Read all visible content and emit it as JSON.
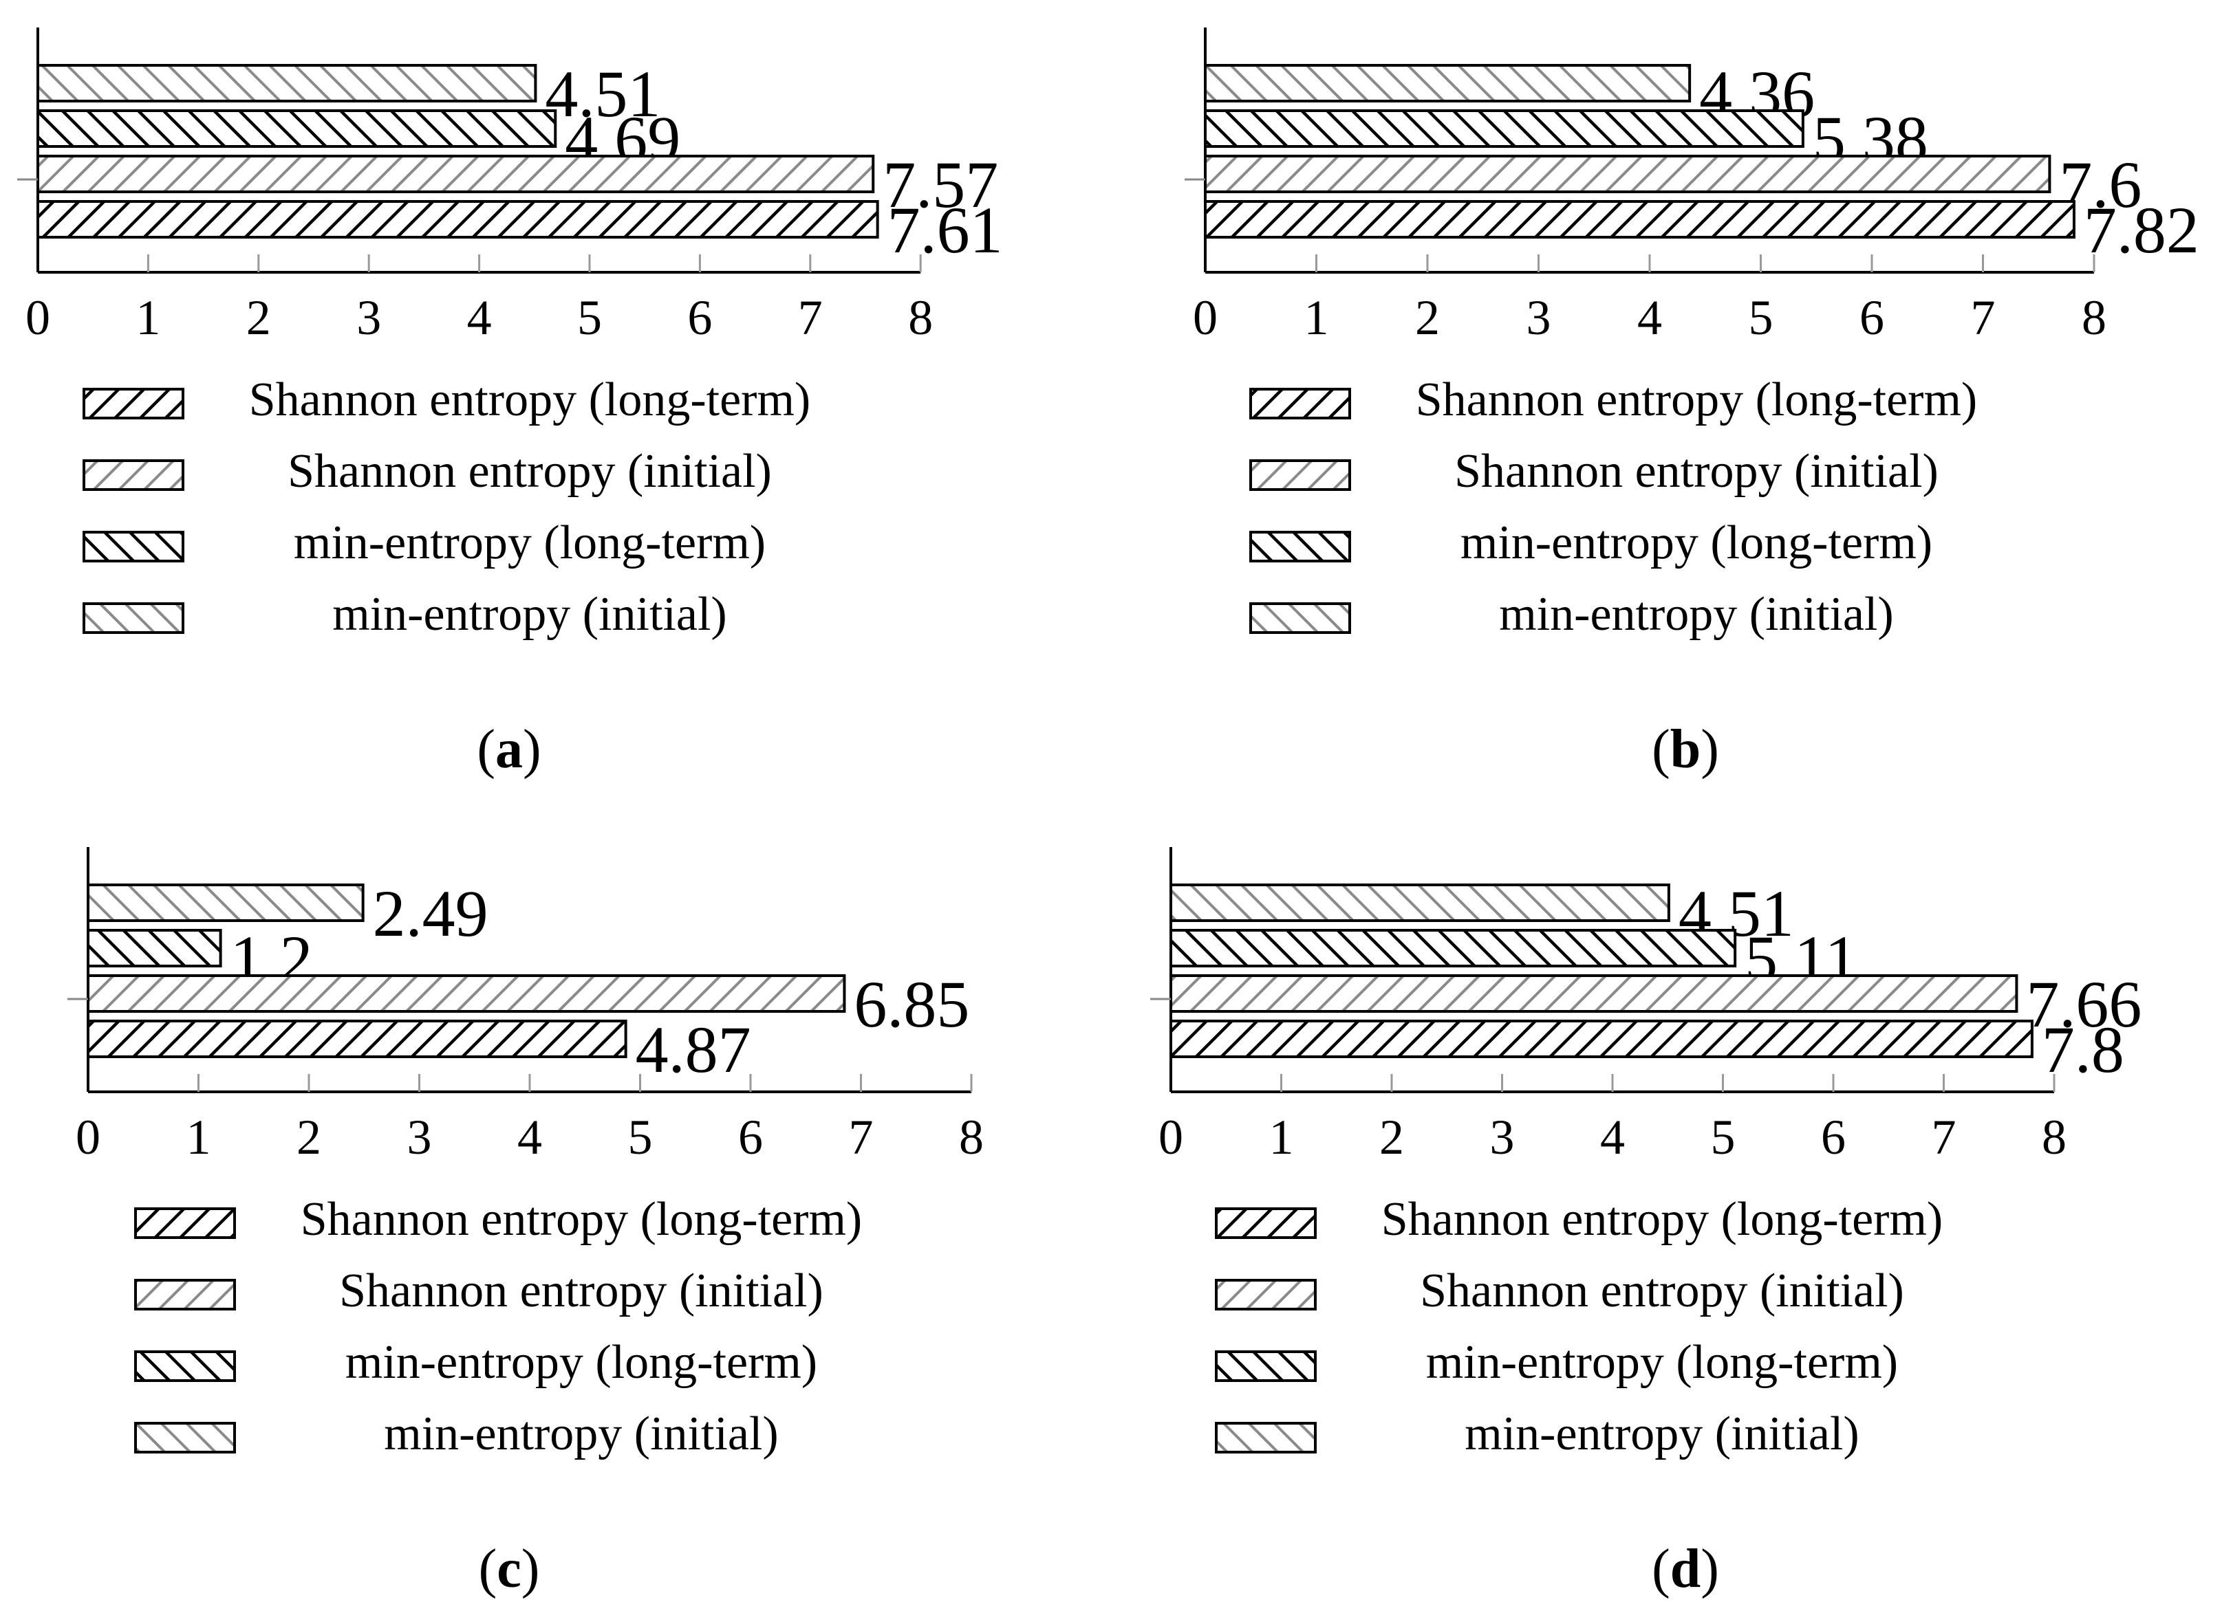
{
  "chart_data": [
    {
      "type": "bar",
      "orientation": "horizontal",
      "caption_letter": "a",
      "categories": [
        ""
      ],
      "series": [
        {
          "name": "Shannon entropy (long-term)",
          "values": [
            7.61
          ]
        },
        {
          "name": "Shannon entropy (initial)",
          "values": [
            7.57
          ]
        },
        {
          "name": "min-entropy (long-term)",
          "values": [
            4.69
          ]
        },
        {
          "name": "min-entropy (initial)",
          "values": [
            4.51
          ]
        }
      ],
      "data_labels": [
        "7.61",
        "7.57",
        "4.69",
        "4.51"
      ],
      "xlim": [
        0,
        8
      ],
      "xticks": [
        "0",
        "1",
        "2",
        "3",
        "4",
        "5",
        "6",
        "7",
        "8"
      ],
      "legend": [
        "Shannon entropy (long-term)",
        "Shannon entropy (initial)",
        "min-entropy (long-term)",
        "min-entropy (initial)"
      ],
      "legend_position": "bottom"
    },
    {
      "type": "bar",
      "orientation": "horizontal",
      "caption_letter": "b",
      "categories": [
        ""
      ],
      "series": [
        {
          "name": "Shannon entropy (long-term)",
          "values": [
            7.82
          ]
        },
        {
          "name": "Shannon entropy (initial)",
          "values": [
            7.6
          ]
        },
        {
          "name": "min-entropy (long-term)",
          "values": [
            5.38
          ]
        },
        {
          "name": "min-entropy (initial)",
          "values": [
            4.36
          ]
        }
      ],
      "data_labels": [
        "7.82",
        "7.6",
        "5.38",
        "4.36"
      ],
      "xlim": [
        0,
        8
      ],
      "xticks": [
        "0",
        "1",
        "2",
        "3",
        "4",
        "5",
        "6",
        "7",
        "8"
      ],
      "legend": [
        "Shannon entropy (long-term)",
        "Shannon entropy (initial)",
        "min-entropy (long-term)",
        "min-entropy (initial)"
      ],
      "legend_position": "bottom"
    },
    {
      "type": "bar",
      "orientation": "horizontal",
      "caption_letter": "c",
      "categories": [
        ""
      ],
      "series": [
        {
          "name": "Shannon entropy (long-term)",
          "values": [
            4.87
          ]
        },
        {
          "name": "Shannon entropy (initial)",
          "values": [
            6.85
          ]
        },
        {
          "name": "min-entropy (long-term)",
          "values": [
            1.2
          ]
        },
        {
          "name": "min-entropy (initial)",
          "values": [
            2.49
          ]
        }
      ],
      "data_labels": [
        "4.87",
        "6.85",
        "1.2",
        "2.49"
      ],
      "xlim": [
        0,
        8
      ],
      "xticks": [
        "0",
        "1",
        "2",
        "3",
        "4",
        "5",
        "6",
        "7",
        "8"
      ],
      "legend": [
        "Shannon entropy (long-term)",
        "Shannon entropy (initial)",
        "min-entropy (long-term)",
        "min-entropy (initial)"
      ],
      "legend_position": "bottom"
    },
    {
      "type": "bar",
      "orientation": "horizontal",
      "caption_letter": "d",
      "categories": [
        ""
      ],
      "series": [
        {
          "name": "Shannon entropy (long-term)",
          "values": [
            7.8
          ]
        },
        {
          "name": "Shannon entropy (initial)",
          "values": [
            7.66
          ]
        },
        {
          "name": "min-entropy (long-term)",
          "values": [
            5.11
          ]
        },
        {
          "name": "min-entropy (initial)",
          "values": [
            4.51
          ]
        }
      ],
      "data_labels": [
        "7.8",
        "7.66",
        "5.11",
        "4.51"
      ],
      "xlim": [
        0,
        8
      ],
      "xticks": [
        "0",
        "1",
        "2",
        "3",
        "4",
        "5",
        "6",
        "7",
        "8"
      ],
      "legend": [
        "Shannon entropy (long-term)",
        "Shannon entropy (initial)",
        "min-entropy (long-term)",
        "min-entropy (initial)"
      ],
      "legend_position": "bottom"
    }
  ]
}
